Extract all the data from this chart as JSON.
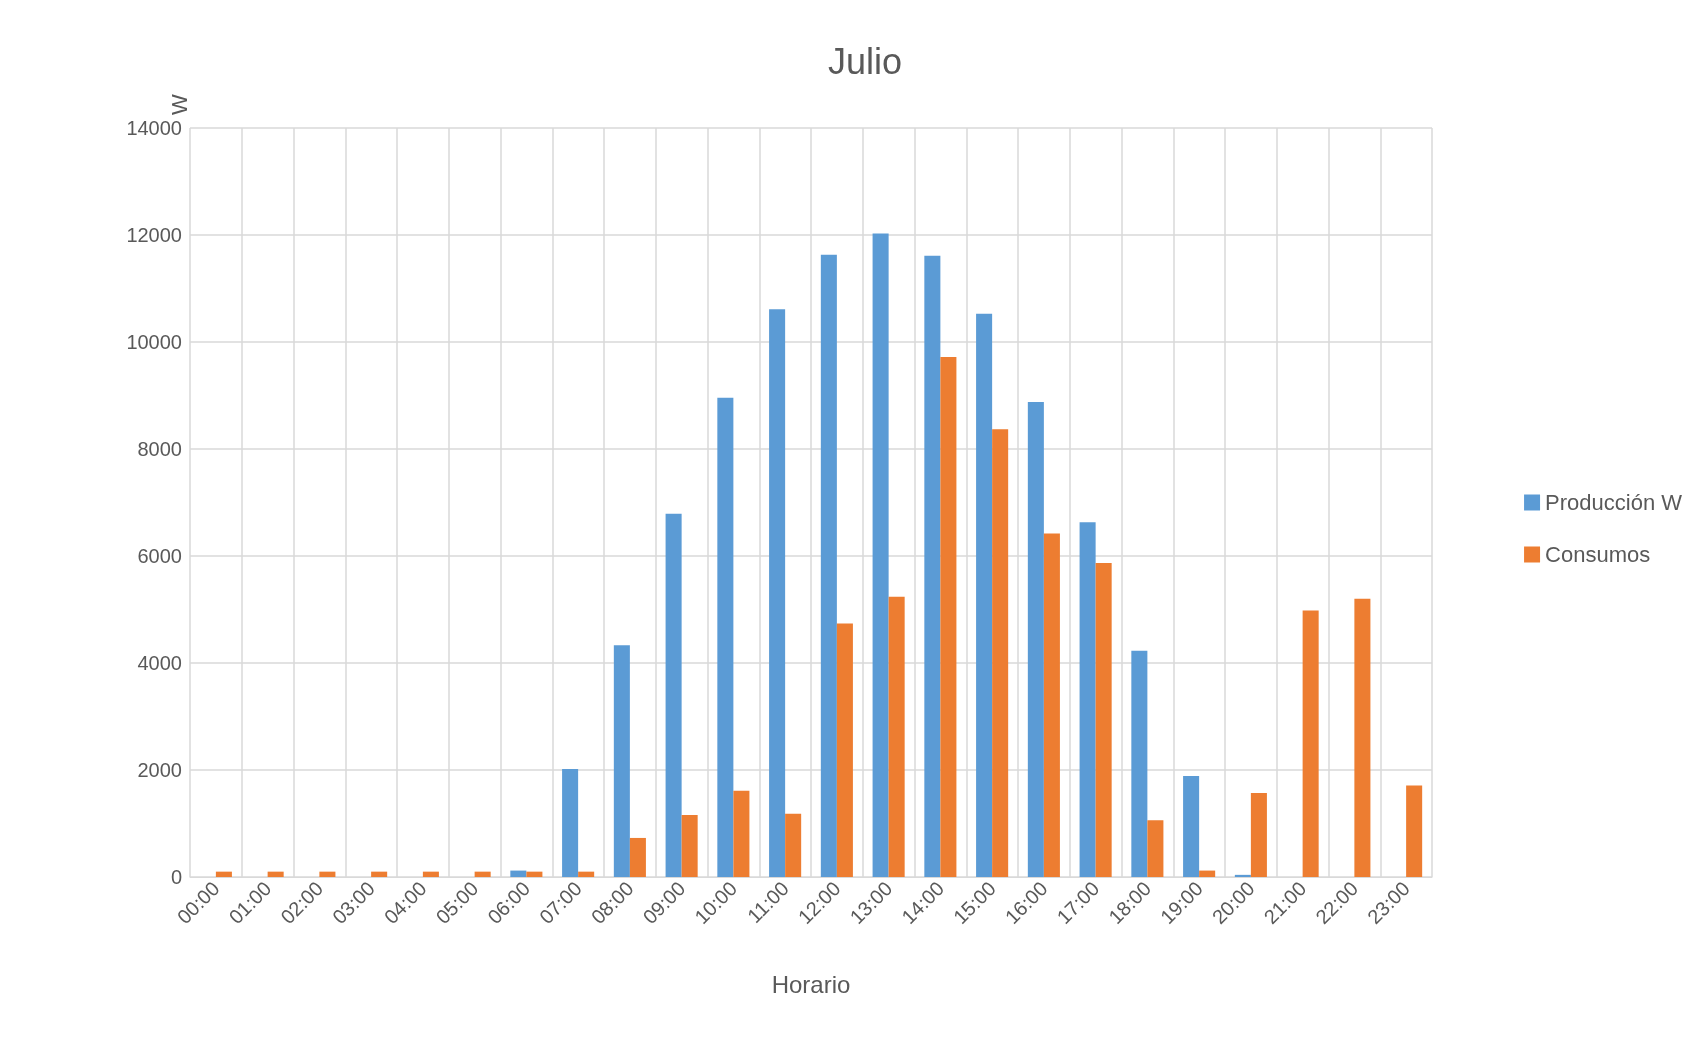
{
  "chart_data": {
    "type": "bar",
    "title": "Julio",
    "xlabel": "Horario",
    "ylabel": "W",
    "categories": [
      "00:00",
      "01:00",
      "02:00",
      "03:00",
      "04:00",
      "05:00",
      "06:00",
      "07:00",
      "08:00",
      "09:00",
      "10:00",
      "11:00",
      "12:00",
      "13:00",
      "14:00",
      "15:00",
      "16:00",
      "17:00",
      "18:00",
      "19:00",
      "20:00",
      "21:00",
      "22:00",
      "23:00"
    ],
    "series": [
      {
        "name": "Producción W",
        "color": "#5b9bd5",
        "values": [
          0,
          0,
          0,
          0,
          0,
          0,
          120,
          2020,
          4330,
          6790,
          8960,
          10610,
          11630,
          12030,
          11610,
          10530,
          8880,
          6630,
          4230,
          1890,
          40,
          0,
          0,
          0
        ]
      },
      {
        "name": "Consumos",
        "color": "#ed7d31",
        "values": [
          100,
          100,
          100,
          100,
          100,
          100,
          100,
          100,
          730,
          1160,
          1610,
          1180,
          4740,
          5240,
          9720,
          8370,
          6420,
          5870,
          1060,
          120,
          1570,
          4980,
          5200,
          1710
        ]
      }
    ],
    "ylim": [
      0,
      14000
    ],
    "yticks": [
      0,
      2000,
      4000,
      6000,
      8000,
      10000,
      12000,
      14000
    ],
    "grid": true,
    "legend": "right"
  }
}
